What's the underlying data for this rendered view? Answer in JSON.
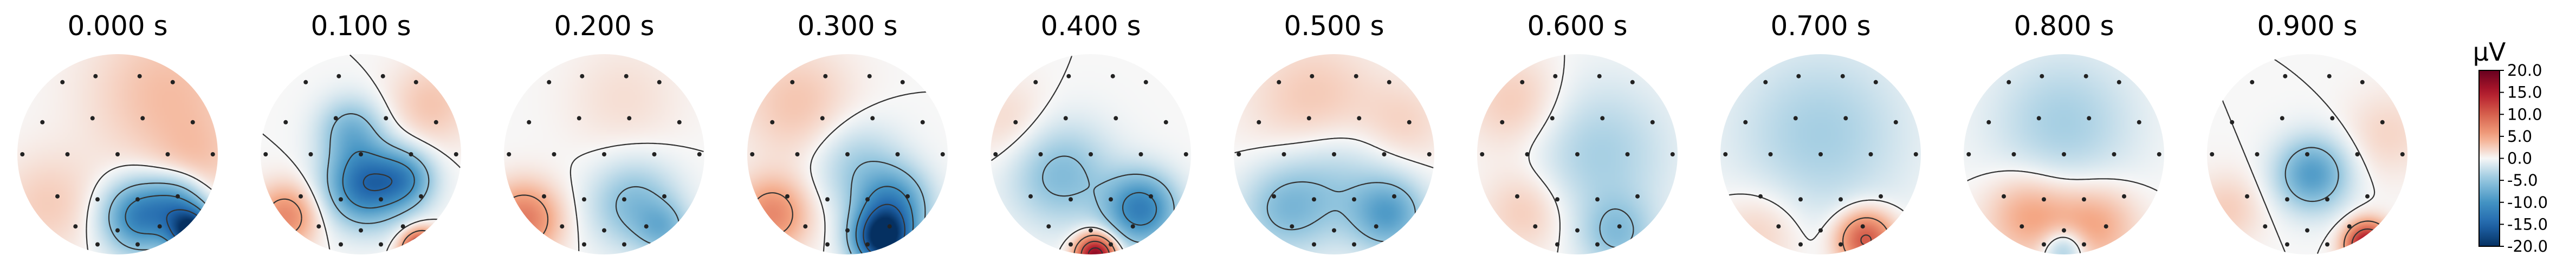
{
  "chart_data": {
    "type": "heatmap",
    "description_free": true,
    "panels": [
      {
        "title": "0.000 s",
        "time": 0.0,
        "sources": [
          {
            "x": 0.22,
            "y": 0.62,
            "v": -12,
            "s": 0.25
          },
          {
            "x": 0.75,
            "y": 0.78,
            "v": -19,
            "s": 0.16
          },
          {
            "x": 0.6,
            "y": 0.5,
            "v": -8,
            "s": 0.2
          },
          {
            "x": 0.5,
            "y": -0.6,
            "v": 3.5,
            "s": 0.55
          },
          {
            "x": -0.7,
            "y": 0.5,
            "v": 2.5,
            "s": 0.35
          },
          {
            "x": 0.8,
            "y": 0.1,
            "v": 2,
            "s": 0.3
          }
        ]
      },
      {
        "title": "0.100 s",
        "time": 0.1,
        "sources": [
          {
            "x": 0.05,
            "y": 0.3,
            "v": -14,
            "s": 0.27
          },
          {
            "x": 0.45,
            "y": 0.25,
            "v": -8,
            "s": 0.2
          },
          {
            "x": -0.1,
            "y": -0.25,
            "v": -6,
            "s": 0.22
          },
          {
            "x": -0.75,
            "y": 0.62,
            "v": 7,
            "s": 0.22
          },
          {
            "x": 0.6,
            "y": 0.95,
            "v": 16,
            "s": 0.13
          },
          {
            "x": 0.7,
            "y": -0.5,
            "v": 3,
            "s": 0.3
          }
        ]
      },
      {
        "title": "0.200 s",
        "time": 0.2,
        "sources": [
          {
            "x": -0.8,
            "y": 0.65,
            "v": 8,
            "s": 0.25
          },
          {
            "x": 0.3,
            "y": 0.5,
            "v": -6,
            "s": 0.3
          },
          {
            "x": 0.6,
            "y": 0.75,
            "v": -5,
            "s": 0.18
          },
          {
            "x": 0.2,
            "y": -0.55,
            "v": 1.5,
            "s": 0.4
          }
        ]
      },
      {
        "title": "0.300 s",
        "time": 0.3,
        "sources": [
          {
            "x": 0.35,
            "y": 0.85,
            "v": -20,
            "s": 0.2
          },
          {
            "x": 0.45,
            "y": 0.5,
            "v": -10,
            "s": 0.25
          },
          {
            "x": -0.75,
            "y": 0.6,
            "v": 7,
            "s": 0.25
          },
          {
            "x": -0.5,
            "y": -0.5,
            "v": 3,
            "s": 0.4
          },
          {
            "x": 0.1,
            "y": 0.1,
            "v": -4,
            "s": 0.3
          }
        ]
      },
      {
        "title": "0.400 s",
        "time": 0.4,
        "sources": [
          {
            "x": 0.5,
            "y": 0.55,
            "v": -12,
            "s": 0.25
          },
          {
            "x": -0.3,
            "y": 0.2,
            "v": -6,
            "s": 0.35
          },
          {
            "x": 0.05,
            "y": 1.0,
            "v": 18,
            "s": 0.14
          },
          {
            "x": -0.8,
            "y": -0.3,
            "v": 2,
            "s": 0.3
          }
        ]
      },
      {
        "title": "0.500 s",
        "time": 0.5,
        "sources": [
          {
            "x": -0.5,
            "y": 0.55,
            "v": -5,
            "s": 0.3
          },
          {
            "x": 0.55,
            "y": 0.6,
            "v": -8,
            "s": 0.25
          },
          {
            "x": 0.0,
            "y": 0.3,
            "v": -4,
            "s": 0.4
          },
          {
            "x": -0.2,
            "y": -0.5,
            "v": 3,
            "s": 0.45
          },
          {
            "x": 0.7,
            "y": -0.3,
            "v": 2,
            "s": 0.3
          }
        ]
      },
      {
        "title": "0.600 s",
        "time": 0.6,
        "sources": [
          {
            "x": 0.2,
            "y": 0.0,
            "v": -4,
            "s": 0.5
          },
          {
            "x": -0.5,
            "y": 0.55,
            "v": 3,
            "s": 0.3
          },
          {
            "x": -0.6,
            "y": -0.5,
            "v": 3,
            "s": 0.35
          },
          {
            "x": 0.4,
            "y": 0.8,
            "v": -5,
            "s": 0.25
          }
        ]
      },
      {
        "title": "0.700 s",
        "time": 0.7,
        "sources": [
          {
            "x": 0.0,
            "y": -0.2,
            "v": -4,
            "s": 0.6
          },
          {
            "x": 0.45,
            "y": 0.85,
            "v": 11,
            "s": 0.2
          },
          {
            "x": -0.6,
            "y": 0.75,
            "v": 2.5,
            "s": 0.3
          }
        ]
      },
      {
        "title": "0.800 s",
        "time": 0.8,
        "sources": [
          {
            "x": 0.0,
            "y": -0.3,
            "v": -4,
            "s": 0.5
          },
          {
            "x": -0.35,
            "y": 0.6,
            "v": 5,
            "s": 0.3
          },
          {
            "x": 0.3,
            "y": 0.7,
            "v": 5,
            "s": 0.3
          },
          {
            "x": 0.0,
            "y": 0.95,
            "v": -6,
            "s": 0.15
          }
        ]
      },
      {
        "title": "0.900 s",
        "time": 0.9,
        "sources": [
          {
            "x": 0.05,
            "y": 0.2,
            "v": -9,
            "s": 0.25
          },
          {
            "x": 0.6,
            "y": 0.9,
            "v": 17,
            "s": 0.15
          },
          {
            "x": -0.8,
            "y": 0.55,
            "v": 2.5,
            "s": 0.25
          },
          {
            "x": 0.8,
            "y": -0.2,
            "v": 2,
            "s": 0.3
          }
        ]
      }
    ],
    "contour_levels": [
      -15,
      -10,
      -5,
      0,
      5,
      10,
      15
    ],
    "sensors": [
      [
        -0.55,
        -0.72
      ],
      [
        0.55,
        -0.72
      ],
      [
        -0.22,
        -0.78
      ],
      [
        0.22,
        -0.78
      ],
      [
        -0.75,
        -0.32
      ],
      [
        -0.25,
        -0.36
      ],
      [
        0.25,
        -0.36
      ],
      [
        0.75,
        -0.32
      ],
      [
        -0.95,
        0.0
      ],
      [
        -0.5,
        0.0
      ],
      [
        0.0,
        0.0
      ],
      [
        0.5,
        0.0
      ],
      [
        0.95,
        0.0
      ],
      [
        -0.6,
        0.42
      ],
      [
        -0.2,
        0.45
      ],
      [
        0.2,
        0.45
      ],
      [
        0.6,
        0.42
      ],
      [
        -0.42,
        0.72
      ],
      [
        0.0,
        0.76
      ],
      [
        0.42,
        0.72
      ],
      [
        -0.2,
        0.9
      ],
      [
        0.2,
        0.9
      ]
    ],
    "colorbar": {
      "unit": "µV",
      "vmin": -20,
      "vmax": 20,
      "ticks": [
        20.0,
        15.0,
        10.0,
        5.0,
        0.0,
        -5.0,
        -10.0,
        -15.0,
        -20.0
      ],
      "tick_labels": [
        "20.0",
        "15.0",
        "10.0",
        "5.0",
        "0.0",
        "-5.0",
        "-10.0",
        "-15.0",
        "-20.0"
      ],
      "colormap": "RdBu_r"
    },
    "colors": {
      "contour": "#333333",
      "sensor": "#222222",
      "text": "#000000"
    }
  }
}
